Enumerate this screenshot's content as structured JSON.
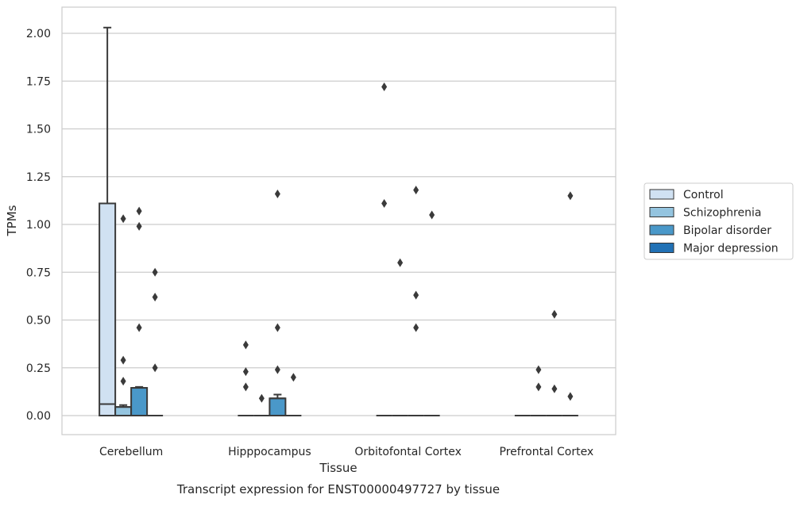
{
  "chart_data": {
    "type": "boxplot",
    "title": "",
    "caption": "Transcript expression for ENST00000497727 by tissue",
    "xlabel": "Tissue",
    "ylabel": "TPMs",
    "ylim": [
      -0.1,
      2.13
    ],
    "yticks": [
      0.0,
      0.25,
      0.5,
      0.75,
      1.0,
      1.25,
      1.5,
      1.75,
      2.0
    ],
    "ytick_labels": [
      "0.00",
      "0.25",
      "0.50",
      "0.75",
      "1.00",
      "1.25",
      "1.50",
      "1.75",
      "2.00"
    ],
    "grid": "horizontal",
    "legend_position": "right",
    "categories": [
      "Cerebellum",
      "Hipppocampus",
      "Orbitofontal Cortex",
      "Prefrontal Cortex"
    ],
    "series": [
      {
        "name": "Control",
        "color": "#d0e1f2",
        "boxes": [
          {
            "q1": 0.0,
            "median": 0.06,
            "q3": 1.11,
            "whisker_low": 0.0,
            "whisker_high": 2.03,
            "outliers": []
          },
          {
            "q1": 0.0,
            "median": 0.0,
            "q3": 0.0,
            "whisker_low": 0.0,
            "whisker_high": 0.0,
            "outliers": [
              0.37,
              0.23,
              0.15
            ]
          },
          {
            "q1": 0.0,
            "median": 0.0,
            "q3": 0.0,
            "whisker_low": 0.0,
            "whisker_high": 0.0,
            "outliers": [
              1.72,
              1.11
            ]
          },
          {
            "q1": 0.0,
            "median": 0.0,
            "q3": 0.0,
            "whisker_low": 0.0,
            "whisker_high": 0.0,
            "outliers": []
          }
        ]
      },
      {
        "name": "Schizophrenia",
        "color": "#94c4df",
        "boxes": [
          {
            "q1": 0.0,
            "median": 0.045,
            "q3": 0.045,
            "whisker_low": 0.0,
            "whisker_high": 0.055,
            "outliers": [
              1.03,
              0.29,
              0.18
            ]
          },
          {
            "q1": 0.0,
            "median": 0.0,
            "q3": 0.0,
            "whisker_low": 0.0,
            "whisker_high": 0.0,
            "outliers": [
              0.09
            ]
          },
          {
            "q1": 0.0,
            "median": 0.0,
            "q3": 0.0,
            "whisker_low": 0.0,
            "whisker_high": 0.0,
            "outliers": [
              0.8
            ]
          },
          {
            "q1": 0.0,
            "median": 0.0,
            "q3": 0.0,
            "whisker_low": 0.0,
            "whisker_high": 0.0,
            "outliers": [
              0.24,
              0.15
            ]
          }
        ]
      },
      {
        "name": "Bipolar disorder",
        "color": "#4a98c9",
        "boxes": [
          {
            "q1": 0.0,
            "median": 0.145,
            "q3": 0.145,
            "whisker_low": 0.0,
            "whisker_high": 0.15,
            "outliers": [
              1.07,
              0.99,
              0.46
            ]
          },
          {
            "q1": 0.0,
            "median": 0.09,
            "q3": 0.09,
            "whisker_low": 0.0,
            "whisker_high": 0.11,
            "outliers": [
              1.16,
              0.46,
              0.24
            ]
          },
          {
            "q1": 0.0,
            "median": 0.0,
            "q3": 0.0,
            "whisker_low": 0.0,
            "whisker_high": 0.0,
            "outliers": [
              1.18,
              0.63,
              0.46
            ]
          },
          {
            "q1": 0.0,
            "median": 0.0,
            "q3": 0.0,
            "whisker_low": 0.0,
            "whisker_high": 0.0,
            "outliers": [
              0.53,
              0.14
            ]
          }
        ]
      },
      {
        "name": "Major depression",
        "color": "#2171b5",
        "boxes": [
          {
            "q1": 0.0,
            "median": 0.0,
            "q3": 0.0,
            "whisker_low": 0.0,
            "whisker_high": 0.0,
            "outliers": [
              0.75,
              0.62,
              0.25
            ]
          },
          {
            "q1": 0.0,
            "median": 0.0,
            "q3": 0.0,
            "whisker_low": 0.0,
            "whisker_high": 0.0,
            "outliers": [
              0.2
            ]
          },
          {
            "q1": 0.0,
            "median": 0.0,
            "q3": 0.0,
            "whisker_low": 0.0,
            "whisker_high": 0.0,
            "outliers": [
              1.05
            ]
          },
          {
            "q1": 0.0,
            "median": 0.0,
            "q3": 0.0,
            "whisker_low": 0.0,
            "whisker_high": 0.0,
            "outliers": [
              1.15,
              0.1
            ]
          }
        ]
      }
    ]
  }
}
